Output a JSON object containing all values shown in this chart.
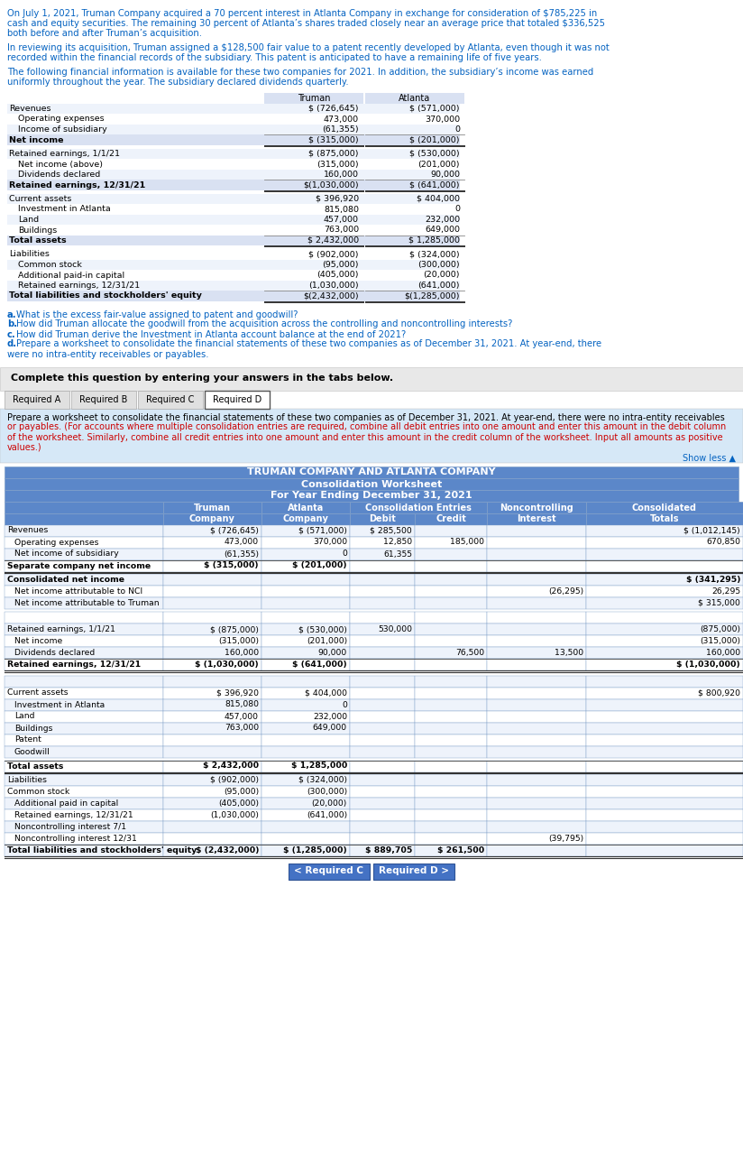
{
  "intro_text": [
    "On July 1, 2021, Truman Company acquired a 70 percent interest in Atlanta Company in exchange for consideration of $785,225 in",
    "cash and equity securities. The remaining 30 percent of Atlanta’s shares traded closely near an average price that totaled $336,525",
    "both before and after Truman’s acquisition."
  ],
  "intro_text2": [
    "In reviewing its acquisition, Truman assigned a $128,500 fair value to a patent recently developed by Atlanta, even though it was not",
    "recorded within the financial records of the subsidiary. This patent is anticipated to have a remaining life of five years."
  ],
  "intro_text3": [
    "The following financial information is available for these two companies for 2021. In addition, the subsidiary’s income was earned",
    "uniformly throughout the year. The subsidiary declared dividends quarterly."
  ],
  "top_table_rows": [
    [
      "Revenues",
      "$ (726,645)",
      "$ (571,000)",
      false,
      false
    ],
    [
      "Operating expenses",
      "473,000",
      "370,000",
      false,
      false
    ],
    [
      "Income of subsidiary",
      "(61,355)",
      "0",
      false,
      false
    ],
    [
      "Net income",
      "$ (315,000)",
      "$ (201,000)",
      true,
      true
    ],
    [
      "Retained earnings, 1/1/21",
      "$ (875,000)",
      "$ (530,000)",
      false,
      false
    ],
    [
      "Net income (above)",
      "(315,000)",
      "(201,000)",
      false,
      false
    ],
    [
      "Dividends declared",
      "160,000",
      "90,000",
      false,
      false
    ],
    [
      "Retained earnings, 12/31/21",
      "$(1,030,000)",
      "$ (641,000)",
      true,
      true
    ],
    [
      "Current assets",
      "$ 396,920",
      "$ 404,000",
      false,
      false
    ],
    [
      "Investment in Atlanta",
      "815,080",
      "0",
      false,
      false
    ],
    [
      "Land",
      "457,000",
      "232,000",
      false,
      false
    ],
    [
      "Buildings",
      "763,000",
      "649,000",
      false,
      false
    ],
    [
      "Total assets",
      "$ 2,432,000",
      "$ 1,285,000",
      true,
      true
    ],
    [
      "Liabilities",
      "$ (902,000)",
      "$ (324,000)",
      false,
      false
    ],
    [
      "Common stock",
      "(95,000)",
      "(300,000)",
      false,
      false
    ],
    [
      "Additional paid-in capital",
      "(405,000)",
      "(20,000)",
      false,
      false
    ],
    [
      "Retained earnings, 12/31/21",
      "(1,030,000)",
      "(641,000)",
      false,
      false
    ],
    [
      "Total liabilities and stockholders' equity",
      "$(2,432,000)",
      "$(1,285,000)",
      true,
      true
    ]
  ],
  "questions": [
    [
      "a",
      "What is the excess fair-value assigned to patent and goodwill?"
    ],
    [
      "b",
      "How did Truman allocate the goodwill from the acquisition across the controlling and noncontrolling interests?"
    ],
    [
      "c",
      "How did Truman derive the Investment in Atlanta account balance at the end of 2021?"
    ],
    [
      "d",
      "Prepare a worksheet to consolidate the financial statements of these two companies as of December 31, 2021. At year-end, there"
    ],
    [
      "",
      "   were no intra-entity receivables or payables."
    ]
  ],
  "complete_text": "Complete this question by entering your answers in the tabs below.",
  "tabs": [
    "Required A",
    "Required B",
    "Required C",
    "Required D"
  ],
  "active_tab": "Required D",
  "instruction_line1": "Prepare a worksheet to consolidate the financial statements of these two companies as of December 31, 2021. At year-end, there were no intra-entity receivables",
  "instruction_red": [
    "or payables. (For accounts where multiple consolidation entries are required, combine all debit entries into one amount and enter this amount in the debit column",
    "of the worksheet. Similarly, combine all credit entries into one amount and enter this amount in the credit column of the worksheet. Input all amounts as positive",
    "values.)"
  ],
  "show_less": "Show less ▲",
  "worksheet_title": "TRUMAN COMPANY AND ATLANTA COMPANY",
  "worksheet_subtitle": "Consolidation Worksheet",
  "worksheet_period": "For Year Ending December 31, 2021",
  "ws_rows": [
    [
      "Revenues",
      "$ (726,645)",
      "$ (571,000)",
      "$ 285,500",
      "",
      "",
      "$ (1,012,145)",
      false
    ],
    [
      "Operating expenses",
      "473,000",
      "370,000",
      "12,850",
      "185,000",
      "",
      "670,850",
      false
    ],
    [
      "Net income of subsidiary",
      "(61,355)",
      "0",
      "61,355",
      "",
      "",
      "",
      false
    ],
    [
      "Separate company net income",
      "$ (315,000)",
      "$ (201,000)",
      "",
      "",
      "",
      "",
      true
    ],
    [
      "Consolidated net income",
      "",
      "",
      "",
      "",
      "",
      "$ (341,295)",
      true
    ],
    [
      "Net income attributable to NCI",
      "",
      "",
      "",
      "",
      "(26,295)",
      "26,295",
      false
    ],
    [
      "Net income attributable to Truman",
      "",
      "",
      "",
      "",
      "",
      "$ 315,000",
      false
    ],
    [
      "",
      "",
      "",
      "",
      "",
      "",
      "",
      false
    ],
    [
      "Retained earnings, 1/1/21",
      "$ (875,000)",
      "$ (530,000)",
      "530,000",
      "",
      "",
      "(875,000)",
      false
    ],
    [
      "Net income",
      "(315,000)",
      "(201,000)",
      "",
      "",
      "",
      "(315,000)",
      false
    ],
    [
      "Dividends declared",
      "160,000",
      "90,000",
      "",
      "76,500",
      "13,500",
      "160,000",
      false
    ],
    [
      "Retained earnings, 12/31/21",
      "$ (1,030,000)",
      "$ (641,000)",
      "",
      "",
      "",
      "$ (1,030,000)",
      true
    ],
    [
      "",
      "",
      "",
      "",
      "",
      "",
      "",
      false
    ],
    [
      "Current assets",
      "$ 396,920",
      "$ 404,000",
      "",
      "",
      "",
      "$ 800,920",
      false
    ],
    [
      "Investment in Atlanta",
      "815,080",
      "0",
      "",
      "",
      "",
      "",
      false
    ],
    [
      "Land",
      "457,000",
      "232,000",
      "",
      "",
      "",
      "",
      false
    ],
    [
      "Buildings",
      "763,000",
      "649,000",
      "",
      "",
      "",
      "",
      false
    ],
    [
      "Patent",
      "",
      "",
      "",
      "",
      "",
      "",
      false
    ],
    [
      "Goodwill",
      "",
      "",
      "",
      "",
      "",
      "",
      false
    ],
    [
      "Total assets",
      "$ 2,432,000",
      "$ 1,285,000",
      "",
      "",
      "",
      "",
      true
    ],
    [
      "Liabilities",
      "$ (902,000)",
      "$ (324,000)",
      "",
      "",
      "",
      "",
      false
    ],
    [
      "Common stock",
      "(95,000)",
      "(300,000)",
      "",
      "",
      "",
      "",
      false
    ],
    [
      "Additional paid in capital",
      "(405,000)",
      "(20,000)",
      "",
      "",
      "",
      "",
      false
    ],
    [
      "Retained earnings, 12/31/21",
      "(1,030,000)",
      "(641,000)",
      "",
      "",
      "",
      "",
      false
    ],
    [
      "Noncontrolling interest 7/1",
      "",
      "",
      "",
      "",
      "",
      "",
      false
    ],
    [
      "Noncontrolling interest 12/31",
      "",
      "",
      "",
      "",
      "(39,795)",
      "",
      false
    ],
    [
      "Total liabilities and stockholders' equity",
      "$ (2,432,000)",
      "$ (1,285,000)",
      "$ 889,705",
      "$ 261,500",
      "",
      "",
      true
    ]
  ],
  "bottom_nav": [
    "< Required C",
    "Required D >"
  ],
  "colors": {
    "header_bg": "#5B87C9",
    "row_alt": "#EEF3FB",
    "row_normal": "#FFFFFF",
    "top_table_header_bg": "#D9E1F2",
    "border_gray": "#AAAAAA",
    "blue_text": "#0563C1",
    "tab_active_bg": "#FFFFFF",
    "tab_inactive_bg": "#E0E0E0",
    "complete_bg": "#E8E8E8",
    "instruction_bg": "#D6E8F7",
    "red_text": "#CC0000",
    "black": "#000000",
    "white": "#FFFFFF",
    "btn_blue": "#4472C4",
    "ws_border": "#7F9FC8"
  }
}
